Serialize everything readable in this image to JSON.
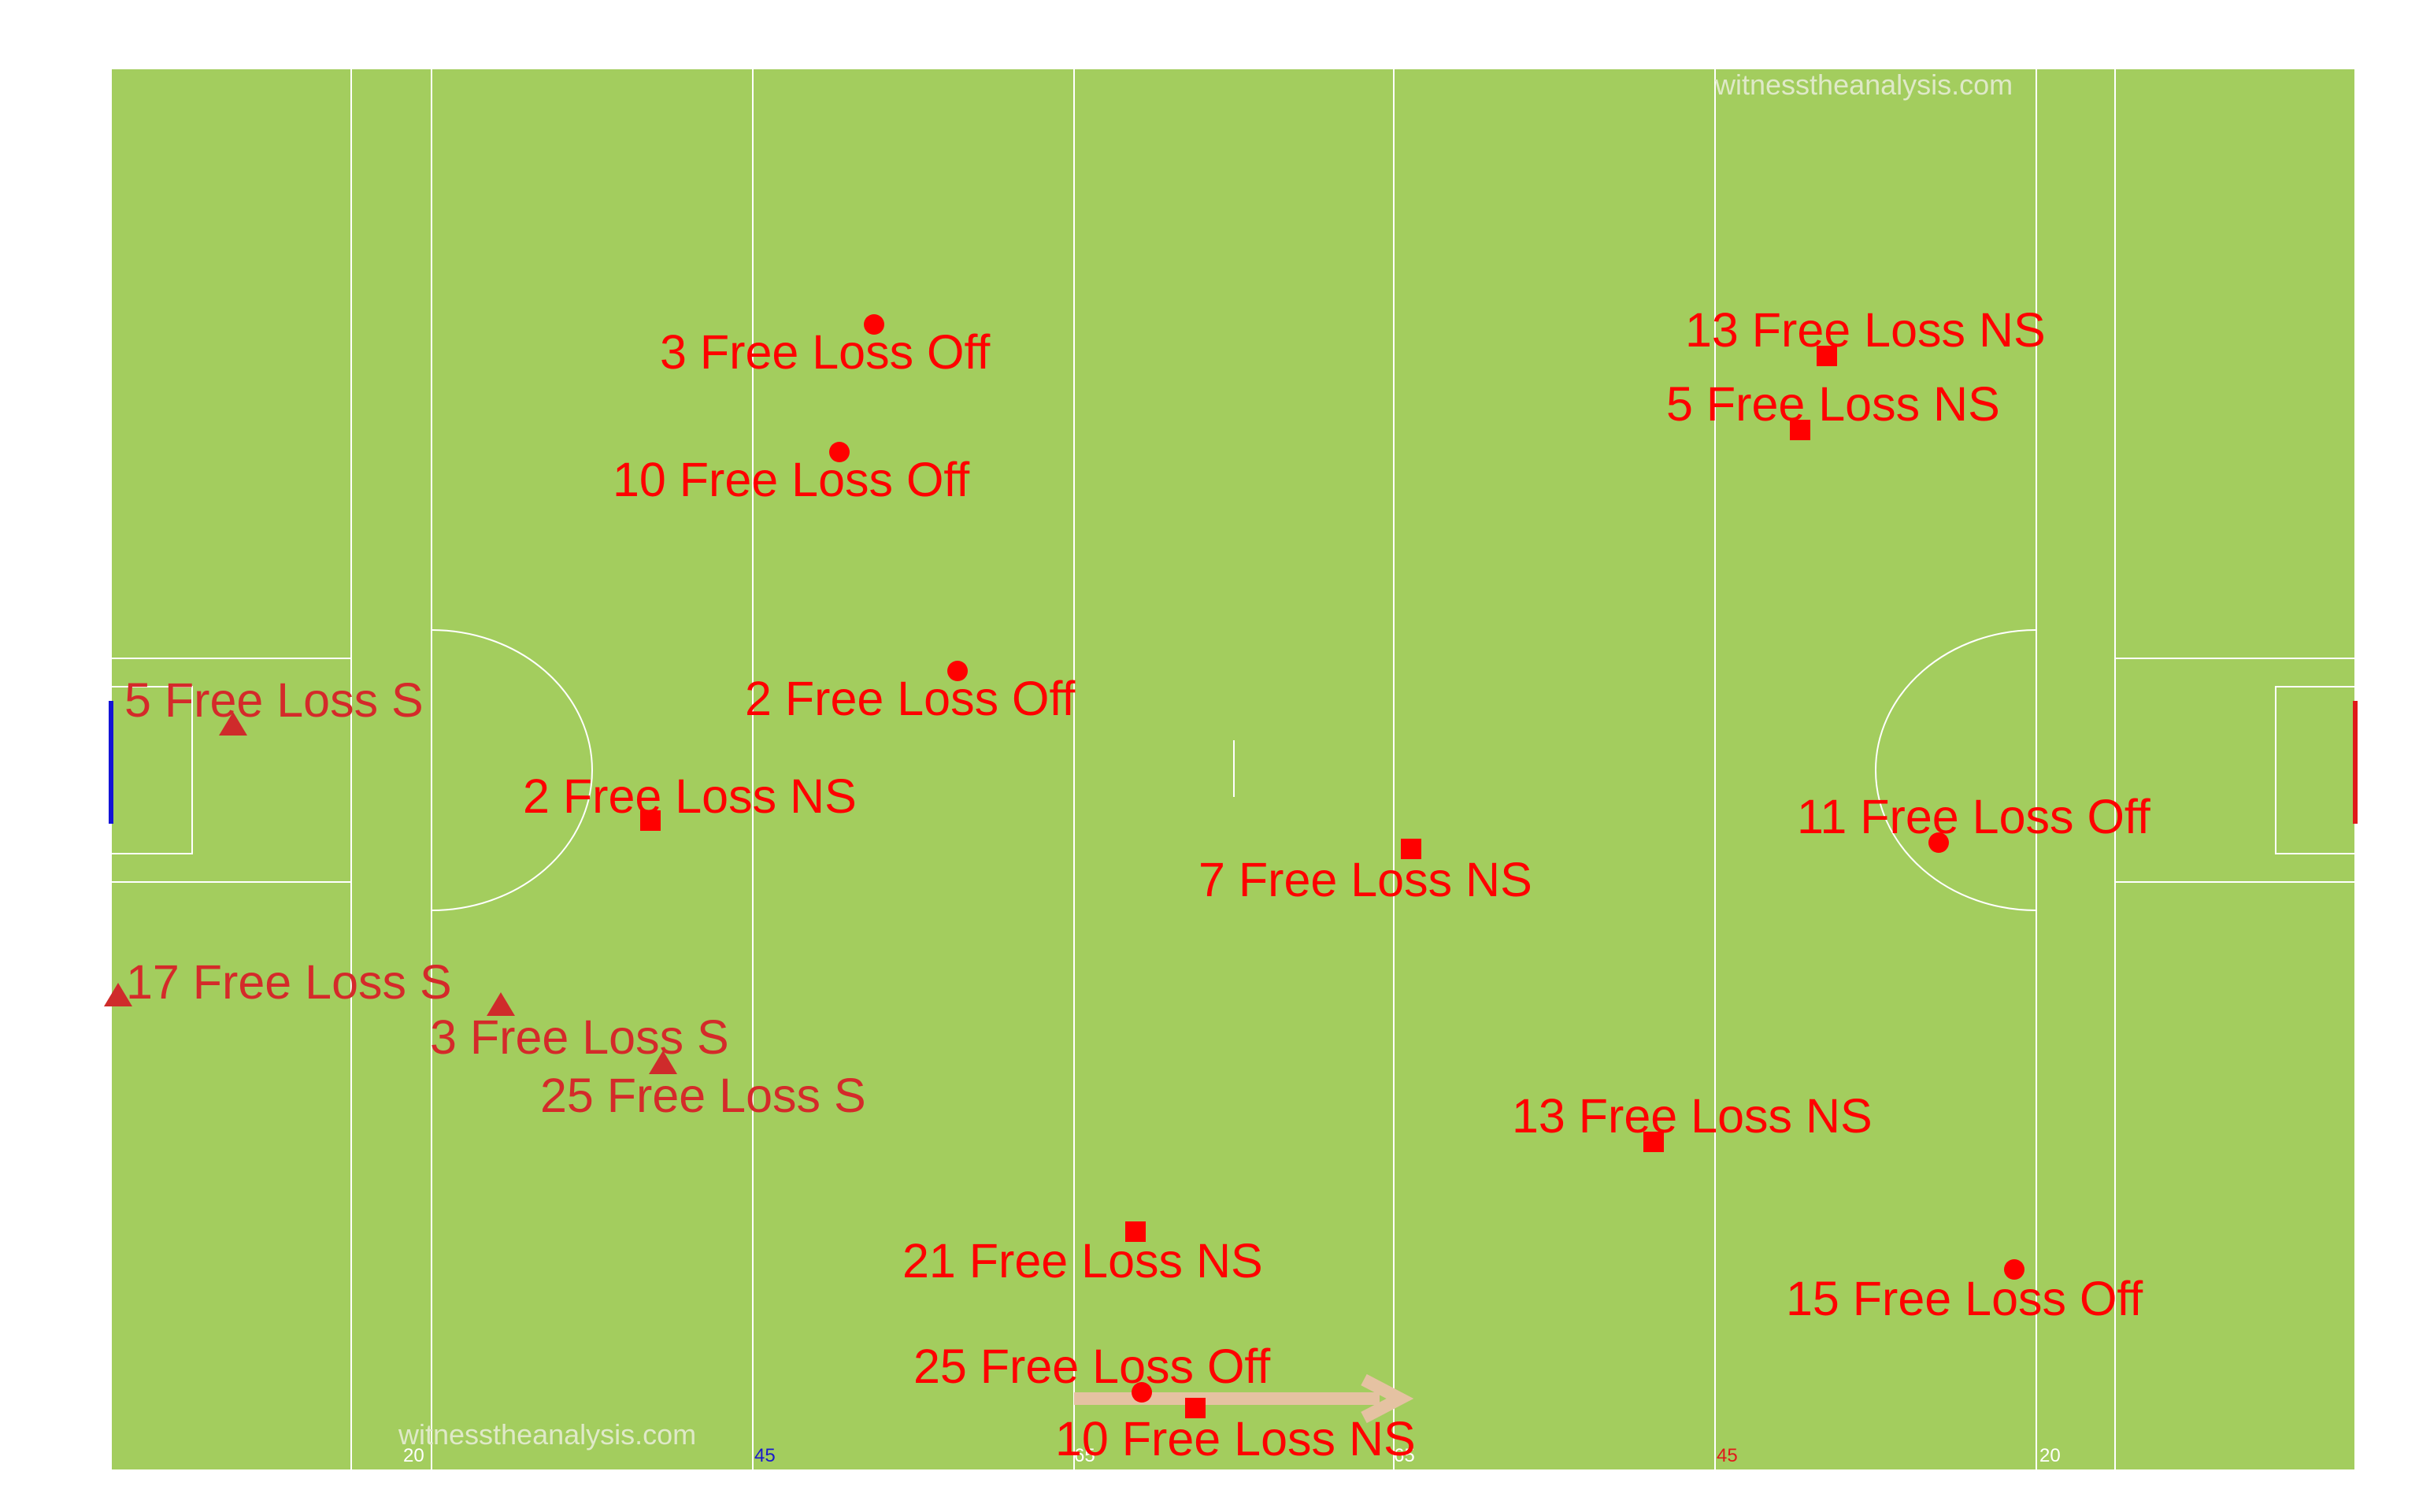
{
  "watermark": "witnesstheanalysis.com",
  "colors": {
    "pitch": "#a3cd5e",
    "lines": "#ffffff",
    "label_score": "#d42a2a",
    "label_other": "#ff0000",
    "marker_score": "#cf2b2b",
    "marker_other": "#ff0000",
    "arrow": "#e5c2a2",
    "goal_left": "#1414d6",
    "goal_right": "#e01a1a",
    "tick_blue": "#1a1acc",
    "tick_red": "#e01a1a"
  },
  "pitch_markings": {
    "bottom_ticks": [
      {
        "label": "20",
        "color": "lines"
      },
      {
        "label": "45",
        "color": "tick_blue"
      },
      {
        "label": "65",
        "color": "lines"
      },
      {
        "label": "65",
        "color": "lines"
      },
      {
        "label": "45",
        "color": "tick_red"
      },
      {
        "label": "20",
        "color": "lines"
      }
    ]
  },
  "legend_symbols": {
    "S": "triangle",
    "NS": "square",
    "Off": "circle"
  },
  "events": [
    {
      "label": "3 Free Loss Off",
      "type": "Off",
      "minute": 3
    },
    {
      "label": "10 Free Loss Off",
      "type": "Off",
      "minute": 10
    },
    {
      "label": "2 Free Loss Off",
      "type": "Off",
      "minute": 2
    },
    {
      "label": "5 Free Loss S",
      "type": "S",
      "minute": 5
    },
    {
      "label": "2 Free Loss NS",
      "type": "NS",
      "minute": 2
    },
    {
      "label": "17 Free Loss S",
      "type": "S",
      "minute": 17
    },
    {
      "label": "3 Free Loss S",
      "type": "S",
      "minute": 3
    },
    {
      "label": "25 Free Loss S",
      "type": "S",
      "minute": 25
    },
    {
      "label": "13 Free Loss NS",
      "type": "NS",
      "minute": 13
    },
    {
      "label": "5 Free Loss NS",
      "type": "NS",
      "minute": 5
    },
    {
      "label": "7 Free Loss NS",
      "type": "NS",
      "minute": 7
    },
    {
      "label": "11 Free Loss Off",
      "type": "Off",
      "minute": 11
    },
    {
      "label": "13 Free Loss NS",
      "type": "NS",
      "minute": 13
    },
    {
      "label": "21 Free Loss NS",
      "type": "NS",
      "minute": 21
    },
    {
      "label": "15 Free Loss Off",
      "type": "Off",
      "minute": 15
    },
    {
      "label": "25 Free Loss Off",
      "type": "Off",
      "minute": 25
    },
    {
      "label": "10 Free Loss NS",
      "type": "NS",
      "minute": 10
    }
  ]
}
